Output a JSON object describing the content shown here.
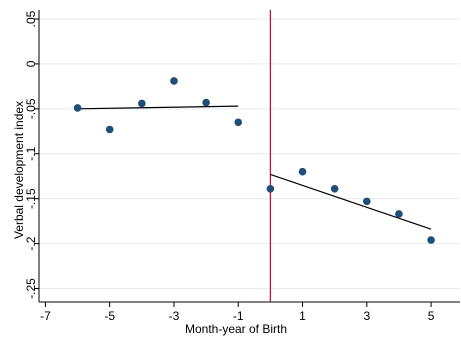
{
  "chart_data": {
    "type": "scatter",
    "xlabel": "Month-year of Birth",
    "ylabel": "Verbal development index",
    "xlim": [
      -7.2,
      5.9
    ],
    "ylim": [
      -0.265,
      0.06
    ],
    "xticks": [
      -7,
      -5,
      -3,
      -1,
      1,
      3,
      5
    ],
    "xtick_labels": [
      "-7",
      "-5",
      "-3",
      "-1",
      "1",
      "3",
      "5"
    ],
    "yticks": [
      0.05,
      0,
      -0.05,
      -0.1,
      -0.15,
      -0.2,
      -0.25
    ],
    "ytick_labels": [
      ".05",
      "0",
      "-.05",
      "-.1",
      "-.15",
      "-.2",
      "-.25"
    ],
    "grid": "horizontal",
    "series": [
      {
        "kind": "points",
        "color": "#1f4e79",
        "x": [
          -6,
          -5,
          -4,
          -3,
          -2,
          -1,
          0,
          1,
          2,
          3,
          4,
          5
        ],
        "y": [
          -0.049,
          -0.073,
          -0.044,
          -0.019,
          -0.043,
          -0.065,
          -0.139,
          -0.12,
          -0.139,
          -0.153,
          -0.167,
          -0.196
        ]
      },
      {
        "kind": "fit-line",
        "color": "#000000",
        "x": [
          -6,
          -1
        ],
        "y": [
          -0.05,
          -0.047
        ]
      },
      {
        "kind": "fit-line",
        "color": "#000000",
        "x": [
          0,
          5
        ],
        "y": [
          -0.123,
          -0.184
        ]
      }
    ],
    "vline": {
      "x": 0,
      "color": "#c0143c"
    }
  }
}
